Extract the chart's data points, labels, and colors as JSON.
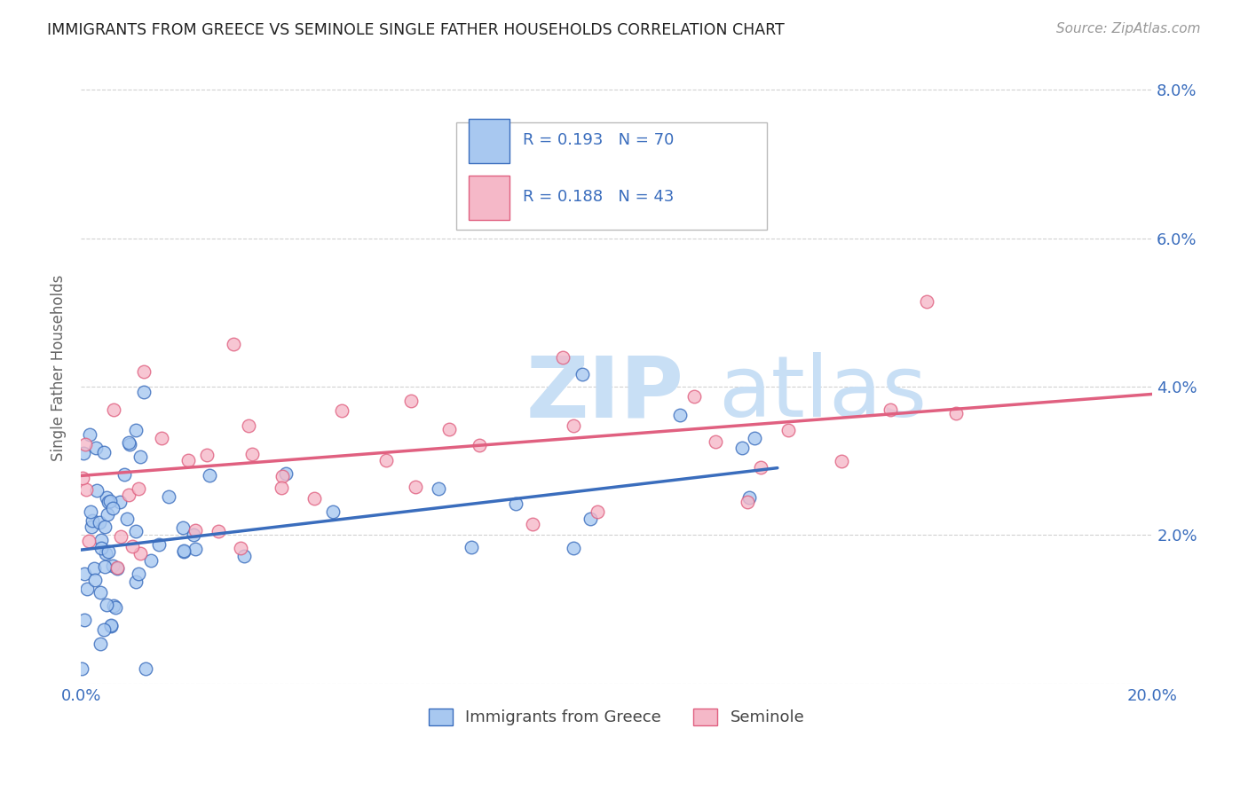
{
  "title": "IMMIGRANTS FROM GREECE VS SEMINOLE SINGLE FATHER HOUSEHOLDS CORRELATION CHART",
  "source": "Source: ZipAtlas.com",
  "ylabel": "Single Father Households",
  "xmin": 0.0,
  "xmax": 0.2,
  "ymin": 0.0,
  "ymax": 0.085,
  "color_blue": "#a8c8f0",
  "color_pink": "#f5b8c8",
  "color_blue_line": "#3a6dbd",
  "color_pink_line": "#e06080",
  "color_watermark": "#d0e8f8",
  "legend_text1": "R = 0.193   N = 70",
  "legend_text2": "R = 0.188   N = 43"
}
